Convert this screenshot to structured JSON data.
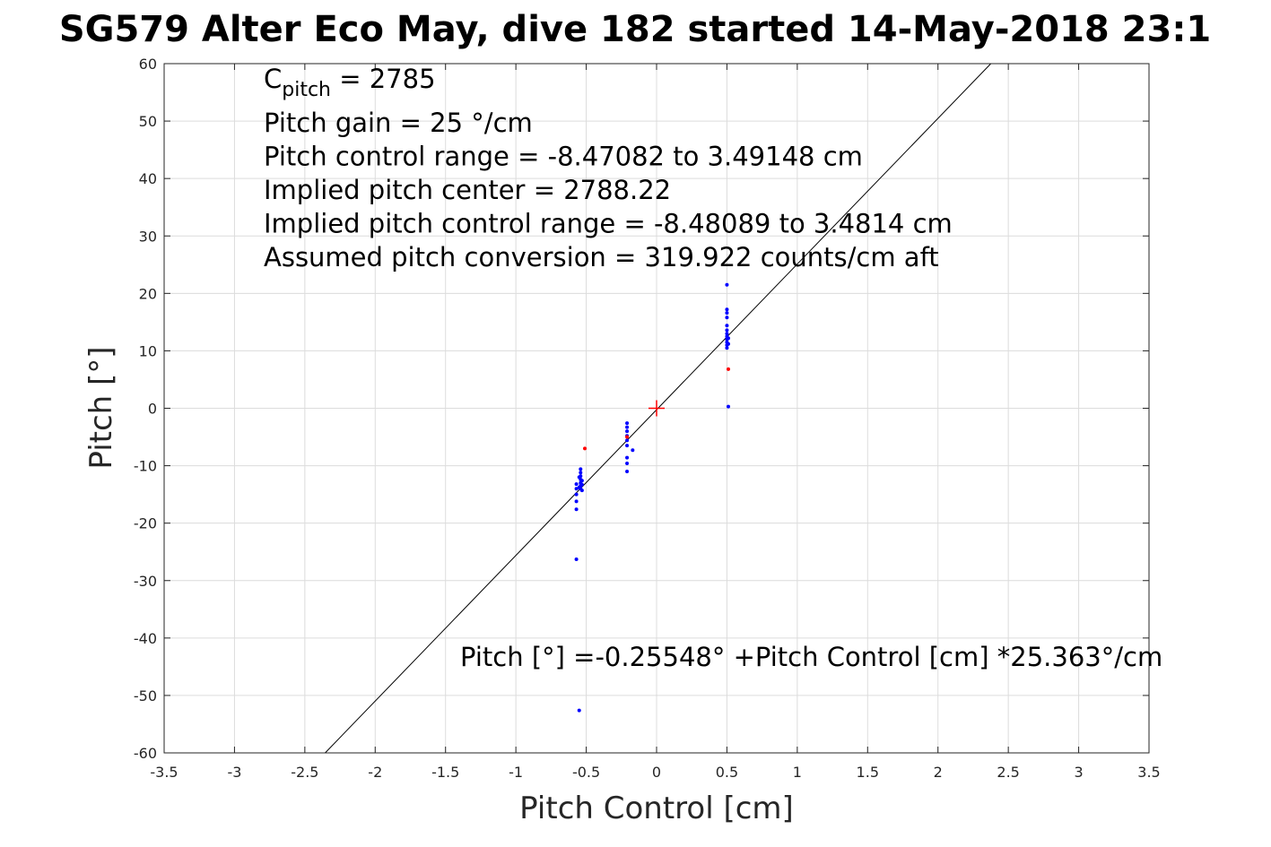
{
  "chart_data": {
    "type": "scatter",
    "title": "SG579 Alter Eco May, dive 182 started 14-May-2018 23:1",
    "xlabel": "Pitch Control [cm]",
    "ylabel": "Pitch [°]",
    "xlim": [
      -3.5,
      3.5
    ],
    "ylim": [
      -60,
      60
    ],
    "xticks": [
      -3.5,
      -3,
      -2.5,
      -2,
      -1.5,
      -1,
      -0.5,
      0,
      0.5,
      1,
      1.5,
      2,
      2.5,
      3,
      3.5
    ],
    "yticks": [
      -60,
      -50,
      -40,
      -30,
      -20,
      -10,
      0,
      10,
      20,
      30,
      40,
      50,
      60
    ],
    "grid": true,
    "annotations_top": {
      "c_pitch_symbol": "C",
      "c_pitch_sub": "pitch",
      "c_pitch_value": " = 2785",
      "lines": [
        "Pitch gain = 25 °/cm",
        "Pitch control range = -8.47082 to 3.49148 cm",
        "Implied pitch center = 2788.22",
        "Implied pitch control range = -8.48089 to 3.4814 cm",
        "Assumed pitch conversion = 319.922 counts/cm aft"
      ]
    },
    "fit_label": "Pitch [°] =-0.25548° +Pitch Control [cm] *25.363°/cm",
    "fit": {
      "intercept": -0.25548,
      "slope": 25.363,
      "color": "#000000"
    },
    "center_marker": {
      "x": 0,
      "y": 0,
      "color": "#ff0000"
    },
    "series": [
      {
        "name": "samples",
        "color": "#0000ff",
        "points": [
          [
            -0.57,
            -13.2
          ],
          [
            -0.57,
            -14.0
          ],
          [
            -0.57,
            -15.0
          ],
          [
            -0.57,
            -16.2
          ],
          [
            -0.57,
            -17.6
          ],
          [
            -0.57,
            -26.3
          ],
          [
            -0.55,
            -52.6
          ],
          [
            -0.54,
            -10.6
          ],
          [
            -0.54,
            -11.2
          ],
          [
            -0.54,
            -11.8
          ],
          [
            -0.54,
            -12.4
          ],
          [
            -0.54,
            -13.0
          ],
          [
            -0.54,
            -13.5
          ],
          [
            -0.54,
            -14.0
          ],
          [
            -0.53,
            -12.6
          ],
          [
            -0.53,
            -13.3
          ],
          [
            -0.53,
            -14.3
          ],
          [
            -0.55,
            -12.0
          ],
          [
            -0.55,
            -13.8
          ],
          [
            -0.21,
            -2.6
          ],
          [
            -0.21,
            -3.3
          ],
          [
            -0.21,
            -4.0
          ],
          [
            -0.21,
            -4.8
          ],
          [
            -0.21,
            -5.6
          ],
          [
            -0.21,
            -6.5
          ],
          [
            -0.21,
            -8.6
          ],
          [
            -0.21,
            -9.6
          ],
          [
            -0.21,
            -11.0
          ],
          [
            -0.17,
            -7.3
          ],
          [
            0.5,
            21.5
          ],
          [
            0.5,
            17.2
          ],
          [
            0.5,
            16.6
          ],
          [
            0.5,
            15.8
          ],
          [
            0.5,
            14.4
          ],
          [
            0.5,
            13.6
          ],
          [
            0.5,
            13.0
          ],
          [
            0.5,
            12.5
          ],
          [
            0.5,
            12.0
          ],
          [
            0.5,
            11.5
          ],
          [
            0.5,
            11.0
          ],
          [
            0.5,
            10.5
          ],
          [
            0.51,
            12.2
          ],
          [
            0.51,
            11.2
          ],
          [
            0.51,
            0.3
          ]
        ]
      },
      {
        "name": "outliers",
        "color": "#ff0000",
        "points": [
          [
            -0.51,
            -7.0
          ],
          [
            -0.21,
            -5.0
          ],
          [
            0.51,
            6.8
          ]
        ]
      }
    ]
  }
}
